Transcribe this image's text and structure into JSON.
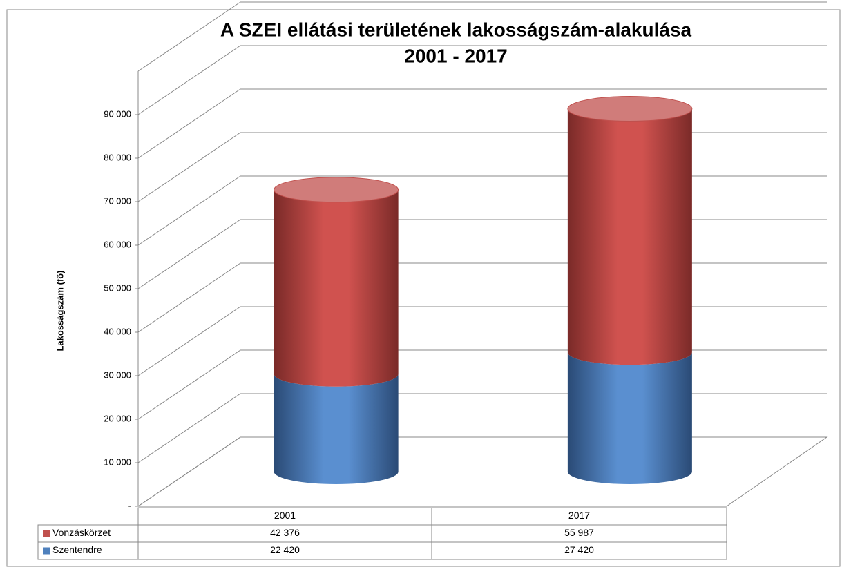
{
  "chart_data": {
    "type": "stacked_cylinder",
    "title": [
      "A SZEI ellátási területének lakosságszám-alakulása",
      "2001 - 2017"
    ],
    "y_label": "Lakosságszám (fő)",
    "categories": [
      "2001",
      "2017"
    ],
    "series": [
      {
        "name": "Szentendre",
        "color": "#4f81bd",
        "values": [
          22420,
          27420
        ],
        "value_labels": [
          "22 420",
          "27 420"
        ]
      },
      {
        "name": "Vonzáskörzet",
        "color": "#c0504d",
        "values": [
          42376,
          55987
        ],
        "value_labels": [
          "42 376",
          "55 987"
        ]
      }
    ],
    "ylim": [
      0,
      100000
    ],
    "yticks": [
      {
        "value": 0,
        "label": "-"
      },
      {
        "value": 10000,
        "label": "10 000"
      },
      {
        "value": 20000,
        "label": "20 000"
      },
      {
        "value": 30000,
        "label": "30 000"
      },
      {
        "value": 40000,
        "label": "40 000"
      },
      {
        "value": 50000,
        "label": "50 000"
      },
      {
        "value": 60000,
        "label": "60 000"
      },
      {
        "value": 70000,
        "label": "70 000"
      },
      {
        "value": 80000,
        "label": "80 000"
      },
      {
        "value": 90000,
        "label": "90 000"
      }
    ],
    "grid": true,
    "data_table": true
  }
}
